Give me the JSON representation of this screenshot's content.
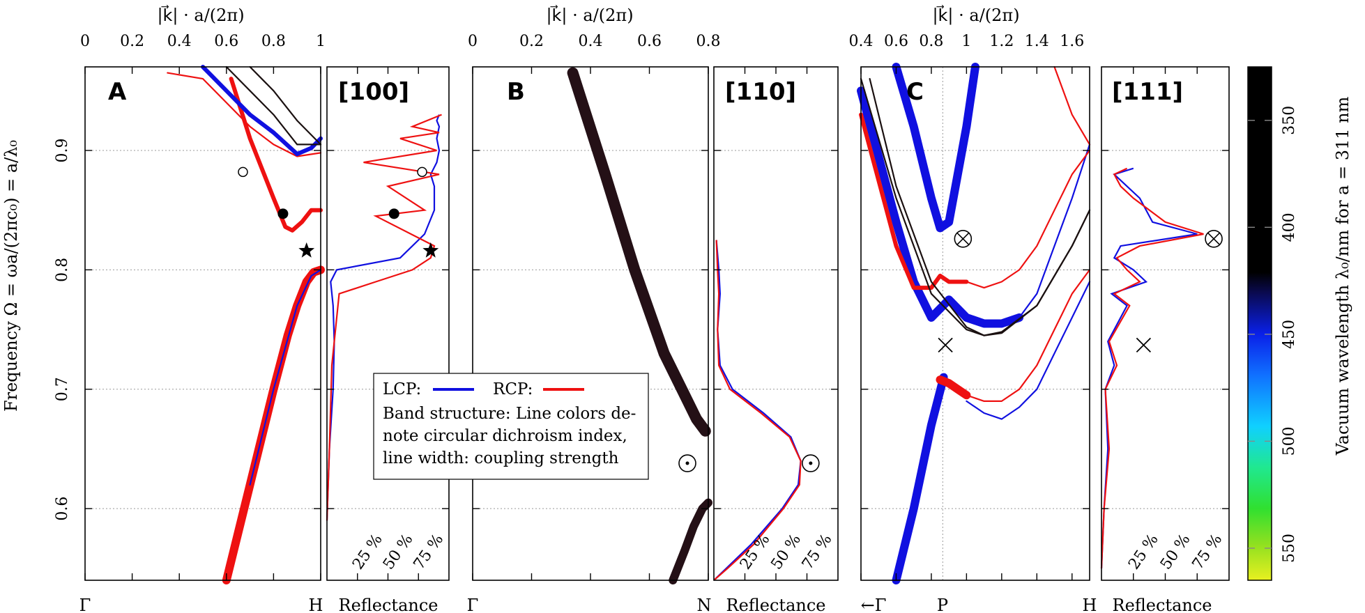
{
  "chart_data": {
    "type": "line",
    "y_axis": {
      "label": "Frequency Ω = ωa/(2πc₀) = a/λ₀",
      "ylim": [
        0.54,
        0.97
      ],
      "ticks": [
        0.6,
        0.7,
        0.8,
        0.9
      ],
      "tick_labels": [
        "0.6",
        "0.7",
        "0.8",
        "0.9"
      ]
    },
    "top_axis_label": "|k⃗| · a/(2π)",
    "panels": [
      {
        "id": "A",
        "label": "A",
        "direction": "[100]",
        "xlim": [
          0,
          1
        ],
        "x_ticks": [
          0,
          0.2,
          0.4,
          0.6,
          0.8,
          1
        ],
        "x_tick_labels": [
          "0",
          "0.2",
          "0.4",
          "0.6",
          "0.8",
          "1"
        ],
        "bottom_left": "Γ",
        "bottom_right": "H",
        "bands": [
          {
            "series": "RCP",
            "width": "thick",
            "x": [
              0.6,
              0.7,
              0.8,
              0.86,
              0.9,
              0.94,
              0.97,
              1.0
            ],
            "y": [
              0.54,
              0.62,
              0.7,
              0.745,
              0.77,
              0.79,
              0.798,
              0.8
            ]
          },
          {
            "series": "LCP",
            "width": "thin",
            "x": [
              0.7,
              0.8,
              0.9,
              0.96,
              1.0
            ],
            "y": [
              0.62,
              0.7,
              0.77,
              0.795,
              0.8
            ]
          },
          {
            "series": "RCP",
            "width": "medium",
            "x": [
              0.62,
              0.7,
              0.8,
              0.85,
              0.88,
              0.92,
              0.96,
              1.0
            ],
            "y": [
              0.96,
              0.91,
              0.86,
              0.836,
              0.833,
              0.84,
              0.85,
              0.85
            ]
          },
          {
            "series": "RCP",
            "width": "thin",
            "x": [
              0.35,
              0.5,
              0.6,
              0.7,
              0.8,
              0.9,
              1.0
            ],
            "y": [
              0.965,
              0.96,
              0.94,
              0.92,
              0.905,
              0.895,
              0.898
            ]
          },
          {
            "series": "LCP",
            "width": "medium",
            "x": [
              0.5,
              0.6,
              0.7,
              0.8,
              0.9,
              0.96,
              1.0
            ],
            "y": [
              0.97,
              0.95,
              0.93,
              0.915,
              0.897,
              0.902,
              0.91
            ]
          },
          {
            "series": "mixed",
            "width": "thin",
            "x": [
              0.6,
              0.7,
              0.8,
              0.9,
              1.0
            ],
            "y": [
              0.97,
              0.95,
              0.93,
              0.905,
              0.905
            ]
          },
          {
            "series": "mixed",
            "width": "thin",
            "x": [
              0.7,
              0.8,
              0.9,
              1.0
            ],
            "y": [
              0.97,
              0.95,
              0.925,
              0.905
            ]
          }
        ],
        "reflectance": {
          "LCP": {
            "R": [
              0.0,
              0.02,
              0.05,
              0.06,
              0.05,
              0.03,
              0.08,
              0.6,
              0.8,
              0.88,
              0.88,
              0.85,
              0.9,
              0.92,
              0.9,
              0.92,
              0.9,
              0.92
            ],
            "y": [
              0.59,
              0.65,
              0.7,
              0.74,
              0.77,
              0.79,
              0.8,
              0.81,
              0.83,
              0.85,
              0.87,
              0.88,
              0.89,
              0.9,
              0.91,
              0.92,
              0.925,
              0.93
            ]
          },
          "RCP": {
            "R": [
              0.0,
              0.02,
              0.04,
              0.1,
              0.4,
              0.7,
              0.85,
              0.88,
              0.4,
              0.8,
              0.5,
              0.92,
              0.3,
              0.9,
              0.6,
              0.92,
              0.7,
              0.94
            ],
            "y": [
              0.59,
              0.65,
              0.72,
              0.78,
              0.79,
              0.8,
              0.81,
              0.82,
              0.845,
              0.85,
              0.87,
              0.88,
              0.89,
              0.9,
              0.91,
              0.915,
              0.92,
              0.93
            ]
          }
        },
        "markers": [
          {
            "symbol": "open-circle",
            "x": 0.67,
            "y": 0.882
          },
          {
            "symbol": "filled-circle",
            "x": 0.84,
            "y": 0.847
          },
          {
            "symbol": "star",
            "x": 0.93,
            "y": 0.816
          }
        ]
      },
      {
        "id": "B",
        "label": "B",
        "direction": "[110]",
        "xlim": [
          0,
          0.8
        ],
        "x_ticks": [
          0,
          0.2,
          0.4,
          0.6,
          0.8
        ],
        "x_tick_labels": [
          "0",
          "0.2",
          "0.4",
          "0.6",
          "0.8"
        ],
        "bottom_left": "Γ",
        "bottom_right": "N",
        "bands": [
          {
            "series": "mixed-dark",
            "width": "very-thick",
            "x": [
              0.34,
              0.45,
              0.55,
              0.65,
              0.72,
              0.76,
              0.79
            ],
            "y": [
              0.965,
              0.88,
              0.8,
              0.73,
              0.695,
              0.675,
              0.665
            ]
          },
          {
            "series": "mixed-dark",
            "width": "thick",
            "x": [
              0.68,
              0.72,
              0.75,
              0.78,
              0.8
            ],
            "y": [
              0.54,
              0.565,
              0.585,
              0.6,
              0.605
            ]
          }
        ],
        "reflectance": {
          "LCP": {
            "R": [
              0.0,
              0.1,
              0.3,
              0.55,
              0.68,
              0.7,
              0.62,
              0.4,
              0.15,
              0.05,
              0.03,
              0.05,
              0.04,
              0.02
            ],
            "y": [
              0.54,
              0.55,
              0.57,
              0.6,
              0.62,
              0.64,
              0.66,
              0.68,
              0.7,
              0.72,
              0.75,
              0.78,
              0.8,
              0.825
            ]
          },
          "RCP": {
            "R": [
              0.0,
              0.11,
              0.32,
              0.56,
              0.69,
              0.7,
              0.61,
              0.38,
              0.13,
              0.04,
              0.03,
              0.04,
              0.03,
              0.02
            ],
            "y": [
              0.54,
              0.55,
              0.57,
              0.6,
              0.62,
              0.64,
              0.66,
              0.68,
              0.7,
              0.72,
              0.75,
              0.78,
              0.8,
              0.825
            ]
          }
        },
        "markers": [
          {
            "symbol": "circled-dot",
            "x": 0.74,
            "y": 0.638
          }
        ]
      },
      {
        "id": "C",
        "label": "C",
        "direction": "[111]",
        "xlim": [
          0.4,
          1.7
        ],
        "x_ticks": [
          0.4,
          0.6,
          0.8,
          1.0,
          1.2,
          1.4,
          1.6
        ],
        "x_tick_labels": [
          "0.4",
          "0.6",
          "0.8",
          "1",
          "1.2",
          "1.4",
          "1.6"
        ],
        "bottom_left": "←Γ",
        "bottom_middle": "P",
        "bottom_right": "H",
        "bands": [
          {
            "series": "LCP",
            "width": "thick",
            "x": [
              0.6,
              0.7,
              0.8,
              0.87
            ],
            "y": [
              0.54,
              0.6,
              0.67,
              0.71
            ]
          },
          {
            "series": "RCP",
            "width": "thick",
            "x": [
              0.85,
              0.9,
              0.95,
              1.0
            ],
            "y": [
              0.708,
              0.705,
              0.7,
              0.695
            ]
          },
          {
            "series": "RCP",
            "width": "thin",
            "x": [
              1.0,
              1.1,
              1.2,
              1.3,
              1.4,
              1.5,
              1.6,
              1.7
            ],
            "y": [
              0.695,
              0.69,
              0.69,
              0.7,
              0.72,
              0.75,
              0.78,
              0.8
            ]
          },
          {
            "series": "LCP",
            "width": "thin",
            "x": [
              1.0,
              1.1,
              1.2,
              1.3,
              1.4,
              1.5,
              1.6,
              1.7
            ],
            "y": [
              0.69,
              0.68,
              0.675,
              0.685,
              0.7,
              0.73,
              0.76,
              0.79
            ]
          },
          {
            "series": "LCP",
            "width": "thick",
            "x": [
              0.4,
              0.6,
              0.7,
              0.8,
              0.9,
              1.0,
              1.1,
              1.2,
              1.3
            ],
            "y": [
              0.95,
              0.84,
              0.79,
              0.76,
              0.775,
              0.76,
              0.755,
              0.755,
              0.76
            ]
          },
          {
            "series": "LCP",
            "width": "thin",
            "x": [
              1.3,
              1.4,
              1.5,
              1.6,
              1.7
            ],
            "y": [
              0.76,
              0.78,
              0.82,
              0.86,
              0.905
            ]
          },
          {
            "series": "RCP",
            "width": "medium",
            "x": [
              0.4,
              0.6,
              0.7,
              0.8,
              0.85,
              0.9,
              0.95,
              1.0
            ],
            "y": [
              0.93,
              0.82,
              0.785,
              0.785,
              0.795,
              0.79,
              0.79,
              0.79
            ]
          },
          {
            "series": "RCP",
            "width": "thin",
            "x": [
              1.0,
              1.1,
              1.2,
              1.3,
              1.4,
              1.5,
              1.6,
              1.7
            ],
            "y": [
              0.79,
              0.785,
              0.79,
              0.8,
              0.82,
              0.85,
              0.88,
              0.9
            ]
          },
          {
            "series": "mixed",
            "width": "thin",
            "x": [
              0.4,
              0.6,
              0.8,
              1.0,
              1.1,
              1.2,
              1.4,
              1.6,
              1.7
            ],
            "y": [
              0.96,
              0.86,
              0.78,
              0.75,
              0.745,
              0.748,
              0.77,
              0.82,
              0.85
            ]
          },
          {
            "series": "mixed",
            "width": "thin",
            "x": [
              0.45,
              0.6,
              0.8,
              1.0,
              1.1,
              1.2,
              1.4,
              1.6,
              1.7
            ],
            "y": [
              0.96,
              0.87,
              0.79,
              0.752,
              0.745,
              0.747,
              0.77,
              0.82,
              0.85
            ]
          },
          {
            "series": "LCP",
            "width": "thick",
            "x": [
              0.6,
              0.7,
              0.8,
              0.85,
              0.9,
              1.0,
              1.05
            ],
            "y": [
              0.97,
              0.92,
              0.86,
              0.835,
              0.84,
              0.92,
              0.97
            ]
          },
          {
            "series": "RCP",
            "width": "thin",
            "x": [
              1.5,
              1.6,
              1.7
            ],
            "y": [
              0.97,
              0.93,
              0.905
            ]
          }
        ],
        "reflectance": {
          "LCP": {
            "R": [
              0.0,
              0.02,
              0.05,
              0.03,
              0.1,
              0.05,
              0.2,
              0.08,
              0.35,
              0.25,
              0.1,
              0.15,
              0.75,
              0.4,
              0.3,
              0.2,
              0.1,
              0.25
            ],
            "y": [
              0.55,
              0.6,
              0.65,
              0.7,
              0.72,
              0.74,
              0.77,
              0.78,
              0.79,
              0.8,
              0.81,
              0.82,
              0.83,
              0.84,
              0.86,
              0.87,
              0.88,
              0.885
            ]
          },
          "RCP": {
            "R": [
              0.0,
              0.02,
              0.06,
              0.03,
              0.12,
              0.06,
              0.22,
              0.1,
              0.3,
              0.2,
              0.12,
              0.3,
              0.8,
              0.5,
              0.25,
              0.15,
              0.1,
              0.2
            ],
            "y": [
              0.55,
              0.6,
              0.65,
              0.7,
              0.72,
              0.74,
              0.77,
              0.78,
              0.79,
              0.8,
              0.81,
              0.82,
              0.83,
              0.84,
              0.86,
              0.87,
              0.88,
              0.885
            ]
          }
        },
        "markers": [
          {
            "symbol": "circled-times",
            "x": 0.98,
            "y": 0.826
          },
          {
            "symbol": "times",
            "x": 0.88,
            "y": 0.737
          }
        ]
      }
    ],
    "reflectance_axis": {
      "label": "Reflectance",
      "xlim": [
        0,
        1
      ],
      "ticks": [
        0.25,
        0.5,
        0.75
      ],
      "tick_labels": [
        "25 %",
        "50 %",
        "75 %"
      ]
    },
    "legend": {
      "lcp_label": "LCP:",
      "rcp_label": "RCP:",
      "lcp_color": "#1010e0",
      "rcp_color": "#ee1111",
      "note_line1": "Band structure: Line colors de-",
      "note_line2": "note circular dichroism index,",
      "note_line3": "line width: coupling strength"
    },
    "colorbar": {
      "label": "Vacuum wavelength λ₀/nm for a = 311 nm",
      "ticks": [
        350,
        400,
        450,
        500,
        550
      ],
      "tick_labels": [
        "350",
        "400",
        "450",
        "500",
        "550"
      ],
      "range_nm": [
        325,
        565
      ]
    }
  }
}
